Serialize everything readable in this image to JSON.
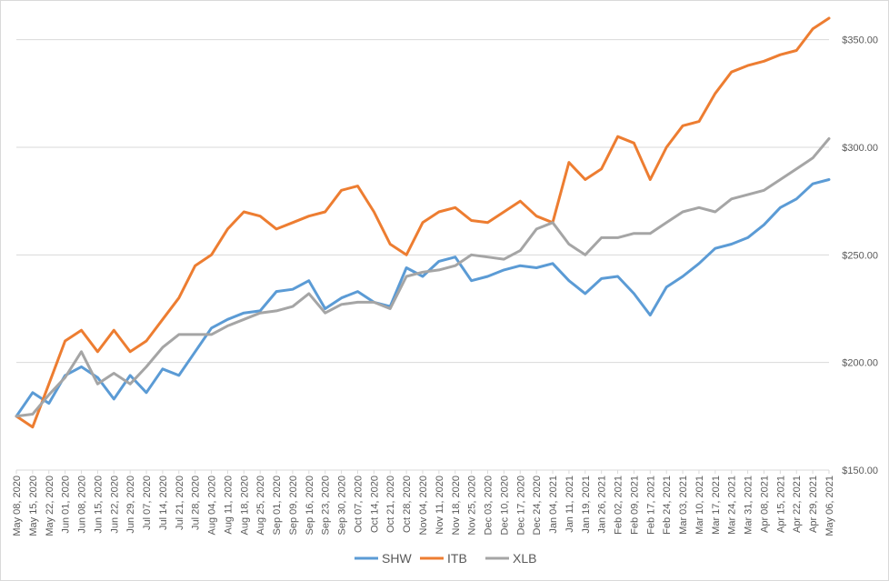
{
  "chart_data": {
    "type": "line",
    "title": "",
    "xlabel": "",
    "ylabel": "",
    "y_axis_position": "right",
    "ylim": [
      150,
      360
    ],
    "y_ticks": [
      "$150.00",
      "$200.00",
      "$250.00",
      "$300.00",
      "$350.00"
    ],
    "y_tick_values": [
      150,
      200,
      250,
      300,
      350
    ],
    "grid": "horizontal",
    "legend_position": "bottom",
    "x_tick_labels": [
      "May 08, 2020",
      "May 15, 2020",
      "May 22, 2020",
      "Jun 01, 2020",
      "Jun 08, 2020",
      "Jun 15, 2020",
      "Jun 22, 2020",
      "Jun 29, 2020",
      "Jul 07, 2020",
      "Jul 14, 2020",
      "Jul 21, 2020",
      "Jul 28, 2020",
      "Aug 04, 2020",
      "Aug 11, 2020",
      "Aug 18, 2020",
      "Aug 25, 2020",
      "Sep 01, 2020",
      "Sep 09, 2020",
      "Sep 16, 2020",
      "Sep 23, 2020",
      "Sep 30, 2020",
      "Oct 07, 2020",
      "Oct 14, 2020",
      "Oct 21, 2020",
      "Oct 28, 2020",
      "Nov 04, 2020",
      "Nov 11, 2020",
      "Nov 18, 2020",
      "Nov 25, 2020",
      "Dec 03, 2020",
      "Dec 10, 2020",
      "Dec 17, 2020",
      "Dec 24, 2020",
      "Jan 04, 2021",
      "Jan 11, 2021",
      "Jan 19, 2021",
      "Jan 26, 2021",
      "Feb 02, 2021",
      "Feb 09, 2021",
      "Feb 17, 2021",
      "Feb 24, 2021",
      "Mar 03, 2021",
      "Mar 10, 2021",
      "Mar 17, 2021",
      "Mar 24, 2021",
      "Mar 31, 2021",
      "Apr 08, 2021",
      "Apr 15, 2021",
      "Apr 22, 2021",
      "Apr 29, 2021",
      "May 06, 2021"
    ],
    "series": [
      {
        "name": "SHW",
        "color": "#5b9bd5",
        "values": [
          175,
          186,
          181,
          194,
          198,
          193,
          183,
          194,
          186,
          197,
          194,
          205,
          216,
          220,
          223,
          224,
          233,
          234,
          238,
          225,
          230,
          233,
          228,
          226,
          244,
          240,
          247,
          249,
          238,
          240,
          243,
          245,
          244,
          246,
          238,
          232,
          239,
          240,
          232,
          222,
          235,
          240,
          246,
          253,
          255,
          258,
          264,
          272,
          276,
          283,
          285
        ]
      },
      {
        "name": "ITB",
        "color": "#ed7d31",
        "values": [
          175,
          170,
          190,
          210,
          215,
          205,
          215,
          205,
          210,
          220,
          230,
          245,
          250,
          262,
          270,
          268,
          262,
          265,
          268,
          270,
          280,
          282,
          270,
          255,
          250,
          265,
          270,
          272,
          266,
          265,
          270,
          275,
          268,
          265,
          293,
          285,
          290,
          305,
          302,
          285,
          300,
          310,
          312,
          325,
          335,
          338,
          340,
          343,
          345,
          355,
          360
        ]
      },
      {
        "name": "XLB",
        "color": "#a5a5a5",
        "values": [
          175,
          176,
          185,
          193,
          205,
          190,
          195,
          190,
          198,
          207,
          213,
          213,
          213,
          217,
          220,
          223,
          224,
          226,
          232,
          223,
          227,
          228,
          228,
          225,
          240,
          242,
          243,
          245,
          250,
          249,
          248,
          252,
          262,
          265,
          255,
          250,
          258,
          258,
          260,
          260,
          265,
          270,
          272,
          270,
          276,
          278,
          280,
          285,
          290,
          295,
          304
        ]
      }
    ]
  }
}
